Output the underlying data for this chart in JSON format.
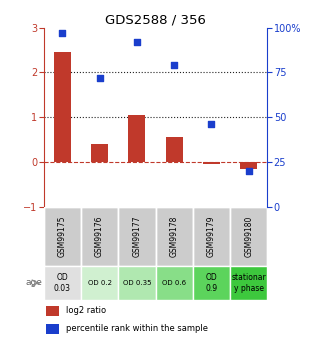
{
  "title": "GDS2588 / 356",
  "samples": [
    "GSM99175",
    "GSM99176",
    "GSM99177",
    "GSM99178",
    "GSM99179",
    "GSM99180"
  ],
  "log2_ratio": [
    2.45,
    0.4,
    1.05,
    0.55,
    -0.05,
    -0.15
  ],
  "percentile_rank": [
    97,
    72,
    92,
    79,
    46,
    20
  ],
  "ylim_left": [
    -1,
    3
  ],
  "ylim_right": [
    0,
    100
  ],
  "yticks_left": [
    -1,
    0,
    1,
    2,
    3
  ],
  "yticks_right": [
    0,
    25,
    50,
    75,
    100
  ],
  "ytick_labels_right": [
    "0",
    "25",
    "50",
    "75",
    "100%"
  ],
  "bar_color": "#c0392b",
  "dot_color": "#1a3ecc",
  "hline_color": "#c0392b",
  "dotted_color": "#222222",
  "age_labels": [
    "OD\n0.03",
    "OD 0.2",
    "OD 0.35",
    "OD 0.6",
    "OD\n0.9",
    "stationar\ny phase"
  ],
  "age_bg_colors": [
    "#e0e0e0",
    "#d0f0d0",
    "#b0e8b0",
    "#88de88",
    "#5cd45c",
    "#3dc83d"
  ],
  "sample_bg_color": "#cccccc",
  "legend_red_label": "log2 ratio",
  "legend_blue_label": "percentile rank within the sample"
}
